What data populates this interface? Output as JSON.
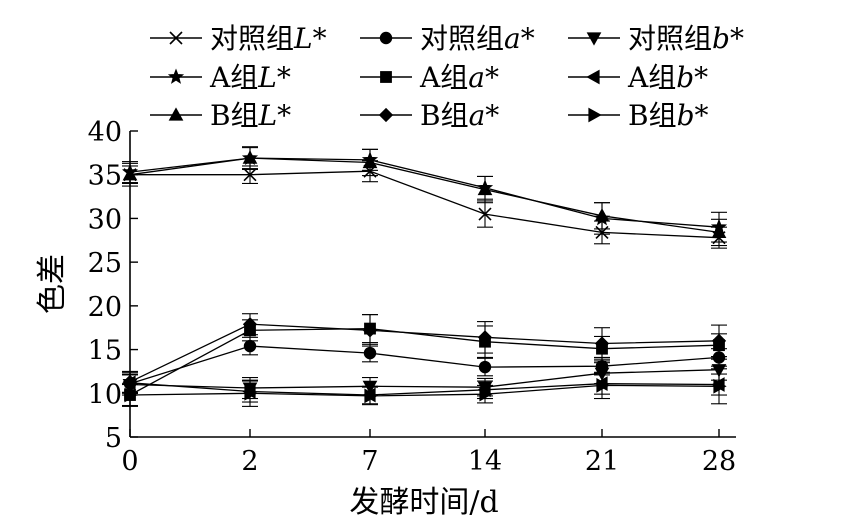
{
  "chart_data": {
    "type": "line",
    "xlabel": "发酵时间/d",
    "ylabel": "色差",
    "categories": [
      "0",
      "2",
      "7",
      "14",
      "21",
      "28"
    ],
    "ylim": [
      5,
      40
    ],
    "yticks": [
      "5",
      "10",
      "15",
      "20",
      "25",
      "30",
      "35",
      "40"
    ],
    "grid": false,
    "legend_position": "top",
    "series": [
      {
        "name_prefix": "对照组",
        "name_var": "L",
        "name_suffix": "*",
        "marker": "x",
        "values": [
          35.0,
          35.0,
          35.4,
          30.5,
          28.4,
          27.8
        ],
        "errors": [
          1.0,
          1.0,
          1.2,
          1.5,
          1.3,
          1.2
        ]
      },
      {
        "name_prefix": "对照组",
        "name_var": "a",
        "name_suffix": "*",
        "marker": "circle",
        "values": [
          11.1,
          15.4,
          14.6,
          13.0,
          13.1,
          14.1
        ],
        "errors": [
          1.0,
          1.0,
          1.0,
          1.0,
          1.0,
          1.0
        ]
      },
      {
        "name_prefix": "对照组",
        "name_var": "b",
        "name_suffix": "*",
        "marker": "triangle-down",
        "values": [
          11.0,
          10.6,
          10.8,
          10.7,
          12.3,
          12.7
        ],
        "errors": [
          1.2,
          1.2,
          1.0,
          1.0,
          1.2,
          1.2
        ]
      },
      {
        "name_prefix": "A组",
        "name_var": "L",
        "name_suffix": "*",
        "marker": "star",
        "values": [
          35.3,
          36.9,
          36.7,
          33.5,
          30.0,
          29.0
        ],
        "errors": [
          1.2,
          1.2,
          1.2,
          1.3,
          1.8,
          1.7
        ]
      },
      {
        "name_prefix": "A组",
        "name_var": "a",
        "name_suffix": "*",
        "marker": "square",
        "values": [
          9.8,
          17.2,
          17.4,
          15.9,
          15.1,
          15.5
        ],
        "errors": [
          1.2,
          1.2,
          1.6,
          1.8,
          1.4,
          1.3
        ]
      },
      {
        "name_prefix": "A组",
        "name_var": "b",
        "name_suffix": "*",
        "marker": "triangle-left",
        "values": [
          11.2,
          10.2,
          9.8,
          10.4,
          11.1,
          11.0
        ],
        "errors": [
          1.2,
          1.2,
          1.0,
          1.0,
          1.2,
          1.2
        ]
      },
      {
        "name_prefix": "B组",
        "name_var": "L",
        "name_suffix": "*",
        "marker": "triangle-up",
        "values": [
          35.0,
          36.9,
          36.4,
          33.3,
          30.3,
          28.4
        ],
        "errors": [
          1.3,
          1.3,
          1.5,
          1.5,
          1.5,
          1.5
        ]
      },
      {
        "name_prefix": "B组",
        "name_var": "a",
        "name_suffix": "*",
        "marker": "diamond",
        "values": [
          11.3,
          17.9,
          17.2,
          16.4,
          15.7,
          16.0
        ],
        "errors": [
          1.2,
          1.2,
          1.8,
          1.8,
          1.8,
          1.8
        ]
      },
      {
        "name_prefix": "B组",
        "name_var": "b",
        "name_suffix": "*",
        "marker": "triangle-right",
        "values": [
          9.8,
          10.0,
          9.7,
          9.9,
          10.9,
          10.8
        ],
        "errors": [
          1.3,
          1.5,
          1.0,
          1.0,
          1.5,
          2.0
        ]
      }
    ]
  }
}
